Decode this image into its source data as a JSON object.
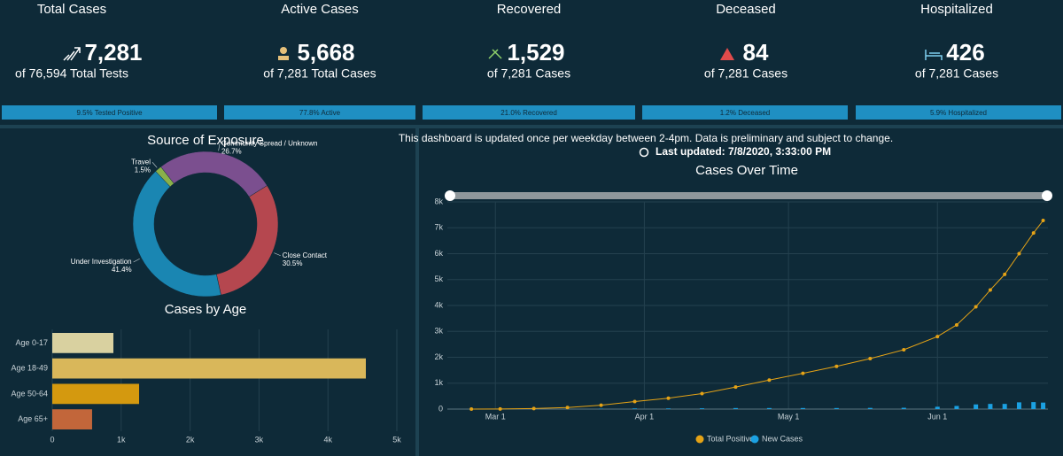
{
  "cards": [
    {
      "title": "Total Cases",
      "value": "7,281",
      "subtitle": "of 76,594 Total Tests",
      "bar_label": "9.5% Tested Positive"
    },
    {
      "title": "Active Cases",
      "value": "5,668",
      "subtitle": "of 7,281 Total Cases",
      "bar_label": "77.8% Active"
    },
    {
      "title": "Recovered",
      "value": "1,529",
      "subtitle": "of 7,281 Cases",
      "bar_label": "21.0% Recovered"
    },
    {
      "title": "Deceased",
      "value": "84",
      "subtitle": "of 7,281 Cases",
      "bar_label": "1.2% Deceased"
    },
    {
      "title": "Hospitalized",
      "value": "426",
      "subtitle": "of 7,281 Cases",
      "bar_label": "5.9% Hospitalized"
    }
  ],
  "notice": {
    "text": "This dashboard is updated once per weekday between 2-4pm. Data is preliminary and subject to change.",
    "last_updated": "Last updated: 7/8/2020, 3:33:00 PM"
  },
  "chart_data": [
    {
      "type": "donut",
      "title": "Source of Exposure",
      "categories": [
        "Community Spread / Unknown",
        "Close Contact",
        "Under Investigation",
        "Travel"
      ],
      "values": [
        26.7,
        30.5,
        41.4,
        1.5
      ],
      "value_labels": [
        "26.7%",
        "30.5%",
        "41.4%",
        "1.5%"
      ],
      "colors": [
        "#7b4f8f",
        "#b5474f",
        "#1a86b2",
        "#8ab04a"
      ]
    },
    {
      "type": "hbar",
      "title": "Cases by Age",
      "categories": [
        "Age 0-17",
        "Age 18-49",
        "Age 50-64",
        "Age 65+"
      ],
      "values": [
        887,
        4550,
        1260,
        578
      ],
      "colors": [
        "#d9d1a0",
        "#d9b75a",
        "#d4990f",
        "#c2663a"
      ],
      "xlim": [
        0,
        5000
      ],
      "xticks": [
        0,
        {
          "value": 1000,
          "label": "1k"
        },
        {
          "value": 2000,
          "label": "2k"
        },
        {
          "value": 3000,
          "label": "3k"
        },
        {
          "value": 4000,
          "label": "4k"
        },
        {
          "value": 5000,
          "label": "5k"
        }
      ]
    },
    {
      "type": "line",
      "title": "Cases Over Time",
      "x": [
        "Feb 24",
        "Mar 2",
        "Mar 9",
        "Mar 16",
        "Mar 23",
        "Mar 30",
        "Apr 6",
        "Apr 13",
        "Apr 20",
        "Apr 27",
        "May 4",
        "May 11",
        "May 18",
        "May 25",
        "Jun 1",
        "Jun 5",
        "Jun 9",
        "Jun 12",
        "Jun 15",
        "Jun 18",
        "Jun 21",
        "Jun 23"
      ],
      "series": [
        {
          "name": "Total Positive",
          "color": "#e5a316",
          "values": [
            0,
            5,
            20,
            60,
            150,
            290,
            420,
            600,
            850,
            1120,
            1380,
            1650,
            1950,
            2290,
            2800,
            3250,
            3950,
            4600,
            5200,
            6000,
            6800,
            7281
          ]
        },
        {
          "name": "New Cases",
          "color": "#1ba1e2",
          "values": [
            0,
            1,
            3,
            8,
            15,
            25,
            25,
            30,
            40,
            40,
            40,
            40,
            45,
            50,
            90,
            120,
            180,
            200,
            200,
            260,
            270,
            250
          ]
        }
      ],
      "xlim": [
        "Feb 19",
        "Jun 24"
      ],
      "xticks": [
        "Mar 1",
        "Apr 1",
        "May 1",
        "Jun 1"
      ],
      "ylim": [
        0,
        8000
      ],
      "yticks": [
        0,
        {
          "value": 1000,
          "label": "1k"
        },
        {
          "value": 2000,
          "label": "2k"
        },
        {
          "value": 3000,
          "label": "3k"
        },
        {
          "value": 4000,
          "label": "4k"
        },
        {
          "value": 5000,
          "label": "5k"
        },
        {
          "value": 6000,
          "label": "6k"
        },
        {
          "value": 7000,
          "label": "7k"
        },
        {
          "value": 8000,
          "label": "8k"
        }
      ],
      "grid": true,
      "legend": "bottom"
    }
  ]
}
